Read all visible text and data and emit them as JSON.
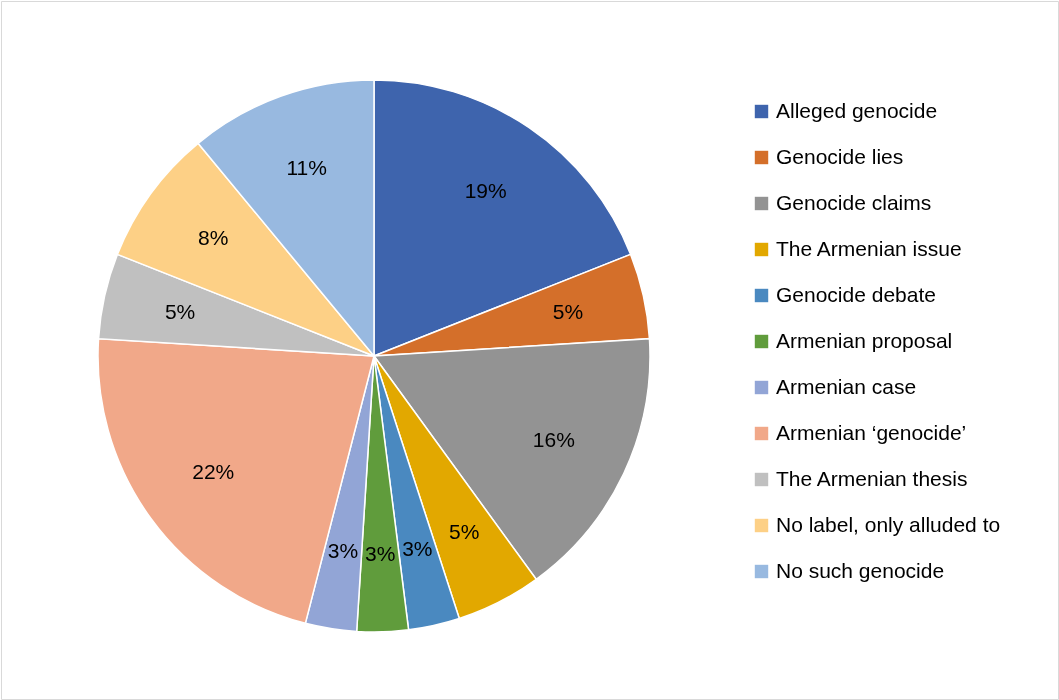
{
  "chart_data": {
    "type": "pie",
    "legend": "right",
    "categories": [
      "Alleged genocide",
      "Genocide lies",
      "Genocide claims",
      "The Armenian issue",
      "Genocide debate",
      "Armenian proposal",
      "Armenian case",
      "Armenian ‘genocide’",
      "The Armenian thesis",
      "No label, only alluded to",
      "No such genocide"
    ],
    "values": [
      19,
      5,
      16,
      5,
      3,
      3,
      3,
      22,
      5,
      8,
      11
    ],
    "value_labels": [
      "19%",
      "5%",
      "16%",
      "5%",
      "3%",
      "3%",
      "3%",
      "22%",
      "5%",
      "8%",
      "11%"
    ],
    "colors": [
      "#3e64ad",
      "#d46f2a",
      "#939393",
      "#e2a800",
      "#4a89c0",
      "#609c3c",
      "#92a5d6",
      "#f1a889",
      "#c0c0c0",
      "#fdd086",
      "#98b9e0"
    ]
  }
}
